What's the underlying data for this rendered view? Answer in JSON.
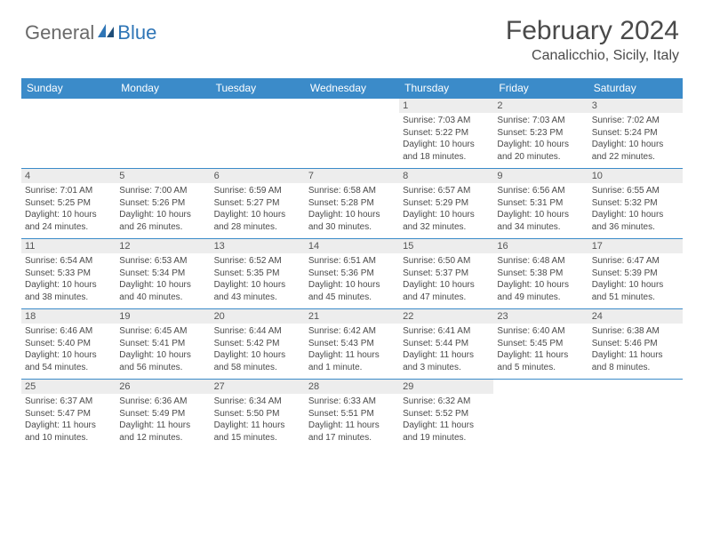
{
  "logo": {
    "general": "General",
    "blue": "Blue"
  },
  "title": "February 2024",
  "location": "Canalicchio, Sicily, Italy",
  "colors": {
    "header_bg": "#3b8bc9",
    "header_text": "#ffffff",
    "daynum_bg": "#ededed",
    "text": "#4a4a4a",
    "border": "#3b8bc9"
  },
  "day_headers": [
    "Sunday",
    "Monday",
    "Tuesday",
    "Wednesday",
    "Thursday",
    "Friday",
    "Saturday"
  ],
  "weeks": [
    [
      {
        "empty": true
      },
      {
        "empty": true
      },
      {
        "empty": true
      },
      {
        "empty": true
      },
      {
        "num": "1",
        "sunrise": "Sunrise: 7:03 AM",
        "sunset": "Sunset: 5:22 PM",
        "daylight1": "Daylight: 10 hours",
        "daylight2": "and 18 minutes."
      },
      {
        "num": "2",
        "sunrise": "Sunrise: 7:03 AM",
        "sunset": "Sunset: 5:23 PM",
        "daylight1": "Daylight: 10 hours",
        "daylight2": "and 20 minutes."
      },
      {
        "num": "3",
        "sunrise": "Sunrise: 7:02 AM",
        "sunset": "Sunset: 5:24 PM",
        "daylight1": "Daylight: 10 hours",
        "daylight2": "and 22 minutes."
      }
    ],
    [
      {
        "num": "4",
        "sunrise": "Sunrise: 7:01 AM",
        "sunset": "Sunset: 5:25 PM",
        "daylight1": "Daylight: 10 hours",
        "daylight2": "and 24 minutes."
      },
      {
        "num": "5",
        "sunrise": "Sunrise: 7:00 AM",
        "sunset": "Sunset: 5:26 PM",
        "daylight1": "Daylight: 10 hours",
        "daylight2": "and 26 minutes."
      },
      {
        "num": "6",
        "sunrise": "Sunrise: 6:59 AM",
        "sunset": "Sunset: 5:27 PM",
        "daylight1": "Daylight: 10 hours",
        "daylight2": "and 28 minutes."
      },
      {
        "num": "7",
        "sunrise": "Sunrise: 6:58 AM",
        "sunset": "Sunset: 5:28 PM",
        "daylight1": "Daylight: 10 hours",
        "daylight2": "and 30 minutes."
      },
      {
        "num": "8",
        "sunrise": "Sunrise: 6:57 AM",
        "sunset": "Sunset: 5:29 PM",
        "daylight1": "Daylight: 10 hours",
        "daylight2": "and 32 minutes."
      },
      {
        "num": "9",
        "sunrise": "Sunrise: 6:56 AM",
        "sunset": "Sunset: 5:31 PM",
        "daylight1": "Daylight: 10 hours",
        "daylight2": "and 34 minutes."
      },
      {
        "num": "10",
        "sunrise": "Sunrise: 6:55 AM",
        "sunset": "Sunset: 5:32 PM",
        "daylight1": "Daylight: 10 hours",
        "daylight2": "and 36 minutes."
      }
    ],
    [
      {
        "num": "11",
        "sunrise": "Sunrise: 6:54 AM",
        "sunset": "Sunset: 5:33 PM",
        "daylight1": "Daylight: 10 hours",
        "daylight2": "and 38 minutes."
      },
      {
        "num": "12",
        "sunrise": "Sunrise: 6:53 AM",
        "sunset": "Sunset: 5:34 PM",
        "daylight1": "Daylight: 10 hours",
        "daylight2": "and 40 minutes."
      },
      {
        "num": "13",
        "sunrise": "Sunrise: 6:52 AM",
        "sunset": "Sunset: 5:35 PM",
        "daylight1": "Daylight: 10 hours",
        "daylight2": "and 43 minutes."
      },
      {
        "num": "14",
        "sunrise": "Sunrise: 6:51 AM",
        "sunset": "Sunset: 5:36 PM",
        "daylight1": "Daylight: 10 hours",
        "daylight2": "and 45 minutes."
      },
      {
        "num": "15",
        "sunrise": "Sunrise: 6:50 AM",
        "sunset": "Sunset: 5:37 PM",
        "daylight1": "Daylight: 10 hours",
        "daylight2": "and 47 minutes."
      },
      {
        "num": "16",
        "sunrise": "Sunrise: 6:48 AM",
        "sunset": "Sunset: 5:38 PM",
        "daylight1": "Daylight: 10 hours",
        "daylight2": "and 49 minutes."
      },
      {
        "num": "17",
        "sunrise": "Sunrise: 6:47 AM",
        "sunset": "Sunset: 5:39 PM",
        "daylight1": "Daylight: 10 hours",
        "daylight2": "and 51 minutes."
      }
    ],
    [
      {
        "num": "18",
        "sunrise": "Sunrise: 6:46 AM",
        "sunset": "Sunset: 5:40 PM",
        "daylight1": "Daylight: 10 hours",
        "daylight2": "and 54 minutes."
      },
      {
        "num": "19",
        "sunrise": "Sunrise: 6:45 AM",
        "sunset": "Sunset: 5:41 PM",
        "daylight1": "Daylight: 10 hours",
        "daylight2": "and 56 minutes."
      },
      {
        "num": "20",
        "sunrise": "Sunrise: 6:44 AM",
        "sunset": "Sunset: 5:42 PM",
        "daylight1": "Daylight: 10 hours",
        "daylight2": "and 58 minutes."
      },
      {
        "num": "21",
        "sunrise": "Sunrise: 6:42 AM",
        "sunset": "Sunset: 5:43 PM",
        "daylight1": "Daylight: 11 hours",
        "daylight2": "and 1 minute."
      },
      {
        "num": "22",
        "sunrise": "Sunrise: 6:41 AM",
        "sunset": "Sunset: 5:44 PM",
        "daylight1": "Daylight: 11 hours",
        "daylight2": "and 3 minutes."
      },
      {
        "num": "23",
        "sunrise": "Sunrise: 6:40 AM",
        "sunset": "Sunset: 5:45 PM",
        "daylight1": "Daylight: 11 hours",
        "daylight2": "and 5 minutes."
      },
      {
        "num": "24",
        "sunrise": "Sunrise: 6:38 AM",
        "sunset": "Sunset: 5:46 PM",
        "daylight1": "Daylight: 11 hours",
        "daylight2": "and 8 minutes."
      }
    ],
    [
      {
        "num": "25",
        "sunrise": "Sunrise: 6:37 AM",
        "sunset": "Sunset: 5:47 PM",
        "daylight1": "Daylight: 11 hours",
        "daylight2": "and 10 minutes."
      },
      {
        "num": "26",
        "sunrise": "Sunrise: 6:36 AM",
        "sunset": "Sunset: 5:49 PM",
        "daylight1": "Daylight: 11 hours",
        "daylight2": "and 12 minutes."
      },
      {
        "num": "27",
        "sunrise": "Sunrise: 6:34 AM",
        "sunset": "Sunset: 5:50 PM",
        "daylight1": "Daylight: 11 hours",
        "daylight2": "and 15 minutes."
      },
      {
        "num": "28",
        "sunrise": "Sunrise: 6:33 AM",
        "sunset": "Sunset: 5:51 PM",
        "daylight1": "Daylight: 11 hours",
        "daylight2": "and 17 minutes."
      },
      {
        "num": "29",
        "sunrise": "Sunrise: 6:32 AM",
        "sunset": "Sunset: 5:52 PM",
        "daylight1": "Daylight: 11 hours",
        "daylight2": "and 19 minutes."
      },
      {
        "empty": true
      },
      {
        "empty": true
      }
    ]
  ]
}
